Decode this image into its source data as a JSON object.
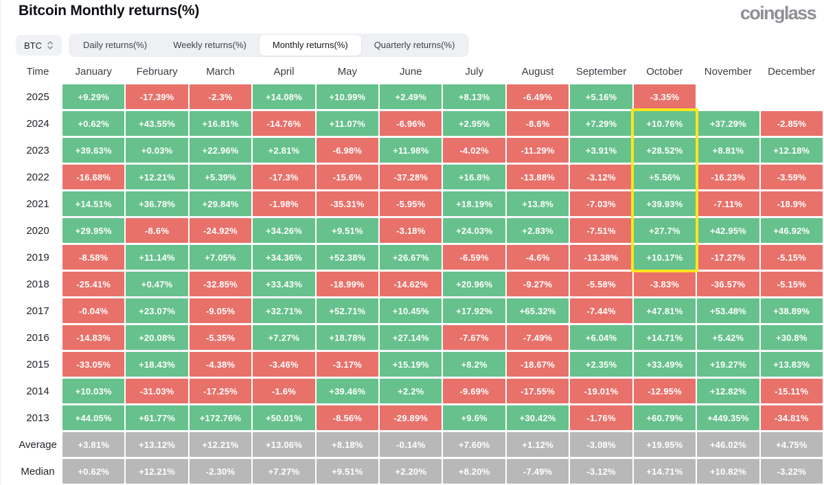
{
  "page": {
    "title": "Bitcoin Monthly returns(%)",
    "logo": "coinglass"
  },
  "controls": {
    "symbol": "BTC",
    "symbol_icon": "sort-arrows-icon",
    "tabs": [
      "Daily returns(%)",
      "Weekly returns(%)",
      "Monthly returns(%)",
      "Quarterly returns(%)"
    ],
    "active_tab": "Monthly returns(%)"
  },
  "chart_data": {
    "type": "heatmap",
    "title": "Bitcoin Monthly returns(%)",
    "row_header": "Time",
    "columns": [
      "January",
      "February",
      "March",
      "April",
      "May",
      "June",
      "July",
      "August",
      "September",
      "October",
      "November",
      "December"
    ],
    "rows": [
      {
        "label": "2025",
        "values": [
          "+9.29%",
          "-17.39%",
          "-2.3%",
          "+14.08%",
          "+10.99%",
          "+2.49%",
          "+8.13%",
          "-6.49%",
          "+5.16%",
          "-3.35%",
          "",
          ""
        ]
      },
      {
        "label": "2024",
        "values": [
          "+0.62%",
          "+43.55%",
          "+16.81%",
          "-14.76%",
          "+11.07%",
          "-6.96%",
          "+2.95%",
          "-8.6%",
          "+7.29%",
          "+10.76%",
          "+37.29%",
          "-2.85%"
        ]
      },
      {
        "label": "2023",
        "values": [
          "+39.63%",
          "+0.03%",
          "+22.96%",
          "+2.81%",
          "-6.98%",
          "+11.98%",
          "-4.02%",
          "-11.29%",
          "+3.91%",
          "+28.52%",
          "+8.81%",
          "+12.18%"
        ]
      },
      {
        "label": "2022",
        "values": [
          "-16.68%",
          "+12.21%",
          "+5.39%",
          "-17.3%",
          "-15.6%",
          "-37.28%",
          "+16.8%",
          "-13.88%",
          "-3.12%",
          "+5.56%",
          "-16.23%",
          "-3.59%"
        ]
      },
      {
        "label": "2021",
        "values": [
          "+14.51%",
          "+36.78%",
          "+29.84%",
          "-1.98%",
          "-35.31%",
          "-5.95%",
          "+18.19%",
          "+13.8%",
          "-7.03%",
          "+39.93%",
          "-7.11%",
          "-18.9%"
        ]
      },
      {
        "label": "2020",
        "values": [
          "+29.95%",
          "-8.6%",
          "-24.92%",
          "+34.26%",
          "+9.51%",
          "-3.18%",
          "+24.03%",
          "+2.83%",
          "-7.51%",
          "+27.7%",
          "+42.95%",
          "+46.92%"
        ]
      },
      {
        "label": "2019",
        "values": [
          "-8.58%",
          "+11.14%",
          "+7.05%",
          "+34.36%",
          "+52.38%",
          "+26.67%",
          "-6.59%",
          "-4.6%",
          "-13.38%",
          "+10.17%",
          "-17.27%",
          "-5.15%"
        ]
      },
      {
        "label": "2018",
        "values": [
          "-25.41%",
          "+0.47%",
          "-32.85%",
          "+33.43%",
          "-18.99%",
          "-14.62%",
          "+20.96%",
          "-9.27%",
          "-5.58%",
          "-3.83%",
          "-36.57%",
          "-5.15%"
        ]
      },
      {
        "label": "2017",
        "values": [
          "-0.04%",
          "+23.07%",
          "-9.05%",
          "+32.71%",
          "+52.71%",
          "+10.45%",
          "+17.92%",
          "+65.32%",
          "-7.44%",
          "+47.81%",
          "+53.48%",
          "+38.89%"
        ]
      },
      {
        "label": "2016",
        "values": [
          "-14.83%",
          "+20.08%",
          "-5.35%",
          "+7.27%",
          "+18.78%",
          "+27.14%",
          "-7.67%",
          "-7.49%",
          "+6.04%",
          "+14.71%",
          "+5.42%",
          "+30.8%"
        ]
      },
      {
        "label": "2015",
        "values": [
          "-33.05%",
          "+18.43%",
          "-4.38%",
          "-3.46%",
          "-3.17%",
          "+15.19%",
          "+8.2%",
          "-18.67%",
          "+2.35%",
          "+33.49%",
          "+19.27%",
          "+13.83%"
        ]
      },
      {
        "label": "2014",
        "values": [
          "+10.03%",
          "-31.03%",
          "-17.25%",
          "-1.6%",
          "+39.46%",
          "+2.2%",
          "-9.69%",
          "-17.55%",
          "-19.01%",
          "-12.95%",
          "+12.82%",
          "-15.11%"
        ]
      },
      {
        "label": "2013",
        "values": [
          "+44.05%",
          "+61.77%",
          "+172.76%",
          "+50.01%",
          "-8.56%",
          "-29.89%",
          "+9.6%",
          "+30.42%",
          "-1.76%",
          "+60.79%",
          "+449.35%",
          "-34.81%"
        ]
      },
      {
        "label": "Average",
        "summary": true,
        "values": [
          "+3.81%",
          "+13.12%",
          "+12.21%",
          "+13.06%",
          "+8.18%",
          "-0.14%",
          "+7.60%",
          "+1.12%",
          "-3.08%",
          "+19.95%",
          "+46.02%",
          "+4.75%"
        ]
      },
      {
        "label": "Median",
        "summary": true,
        "values": [
          "+0.62%",
          "+12.21%",
          "-2.30%",
          "+7.27%",
          "+9.51%",
          "+2.20%",
          "+8.20%",
          "-7.49%",
          "-3.12%",
          "+14.71%",
          "+10.82%",
          "-3.22%"
        ]
      }
    ],
    "highlight": {
      "column": "October",
      "from_row": "2024",
      "to_row": "2019"
    },
    "colors": {
      "positive": "#66c18c",
      "negative": "#e8716a",
      "summary": "#b8b8b8",
      "highlight": "#fde71f"
    },
    "legend": "green = positive monthly return, red = negative monthly return, gray = aggregate rows"
  }
}
